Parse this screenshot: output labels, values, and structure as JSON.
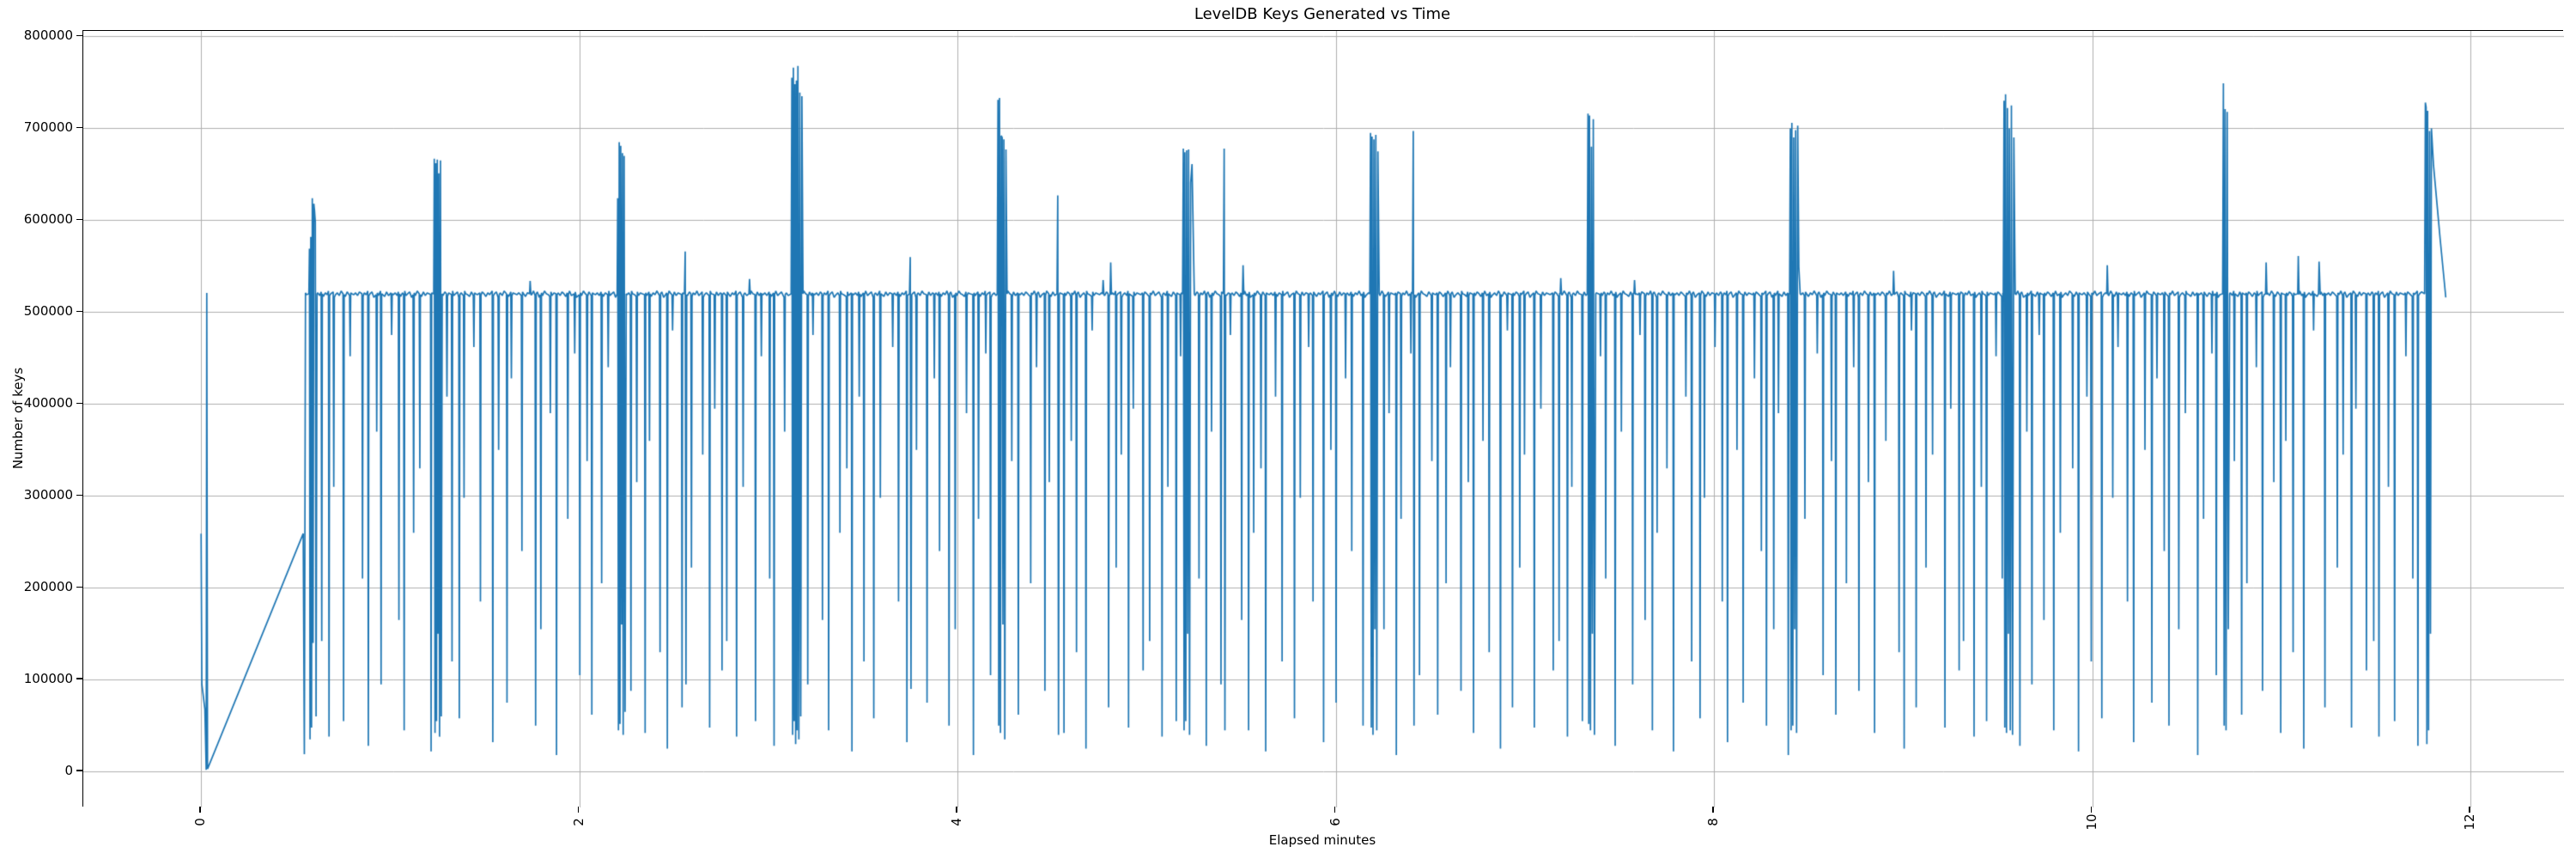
{
  "figure": {
    "title": "LevelDB Keys Generated vs Time"
  },
  "chart_data": {
    "type": "line",
    "title": "LevelDB Keys Generated vs Time",
    "xlabel": "Elapsed minutes",
    "ylabel": "Number of keys",
    "xlim": [
      -0.623,
      12.495
    ],
    "ylim": [
      -39000,
      806000
    ],
    "xticks": [
      0,
      2,
      4,
      6,
      8,
      10,
      12
    ],
    "yticks": [
      0,
      100000,
      200000,
      300000,
      400000,
      500000,
      600000,
      700000,
      800000
    ],
    "x_tick_labels": [
      "0",
      "2",
      "4",
      "6",
      "8",
      "10",
      "12"
    ],
    "y_tick_labels": [
      "0",
      "100000",
      "200000",
      "300000",
      "400000",
      "500000",
      "600000",
      "700000",
      "800000"
    ],
    "grid": true,
    "grid_color": "#b0b0b0",
    "line_color": "#1f77b4",
    "spine_color": "#000000",
    "y_value_scale": 1000,
    "plateau": {
      "start": 0.556,
      "end": 11.754,
      "level": 518,
      "sample_step": 0.01,
      "jitter_pattern": [
        1,
        3,
        0,
        4,
        2,
        -1,
        3,
        1,
        5,
        0,
        2,
        4,
        -2,
        1,
        3,
        0,
        5,
        2,
        1,
        -1,
        4,
        0,
        3,
        2
      ]
    },
    "down_spikes": {
      "base_interval": 0.0385,
      "width": 0.006,
      "interval_mult": [
        1,
        0.65,
        1.35,
        0.9,
        1.7,
        0.8,
        1.15,
        0.6,
        1.45,
        1.0,
        0.72,
        1.3,
        0.85,
        1.55,
        0.95,
        0.7
      ],
      "depths": [
        142,
        38,
        310,
        55,
        452,
        210,
        28,
        370,
        95,
        475,
        165,
        45,
        260,
        330,
        22,
        408,
        120,
        58,
        298,
        462,
        185,
        32,
        350,
        75,
        428,
        240,
        50,
        155,
        390,
        18,
        275,
        455,
        105,
        338,
        62,
        205,
        440,
        88,
        315,
        42,
        360,
        130,
        25,
        480,
        70,
        222,
        345,
        48,
        395,
        110
      ]
    },
    "transient": [
      [
        0.0,
        259
      ],
      [
        0.004,
        95
      ],
      [
        0.02,
        68
      ],
      [
        0.027,
        2
      ],
      [
        0.03,
        521
      ],
      [
        0.034,
        3
      ],
      [
        0.54,
        259
      ],
      [
        0.546,
        19
      ],
      [
        0.552,
        521
      ]
    ],
    "events": [
      {
        "name": "spike-cluster-0",
        "points": [
          [
            0.57,
            520
          ],
          [
            0.573,
            569
          ],
          [
            0.576,
            35
          ],
          [
            0.58,
            582
          ],
          [
            0.584,
            48
          ],
          [
            0.588,
            624
          ],
          [
            0.592,
            140
          ],
          [
            0.596,
            618
          ],
          [
            0.6,
            610
          ],
          [
            0.604,
            598
          ],
          [
            0.608,
            60
          ],
          [
            0.613,
            520
          ]
        ]
      },
      {
        "name": "spike-cluster-1",
        "points": [
          [
            1.23,
            520
          ],
          [
            1.233,
            667
          ],
          [
            1.237,
            42
          ],
          [
            1.241,
            662
          ],
          [
            1.245,
            55
          ],
          [
            1.249,
            666
          ],
          [
            1.253,
            150
          ],
          [
            1.257,
            651
          ],
          [
            1.261,
            38
          ],
          [
            1.266,
            665
          ],
          [
            1.27,
            60
          ],
          [
            1.275,
            520
          ]
        ]
      },
      {
        "name": "bump-1",
        "points": [
          [
            1.737,
            520
          ],
          [
            1.74,
            534
          ],
          [
            1.744,
            519
          ]
        ]
      },
      {
        "name": "spike-cluster-2",
        "points": [
          [
            2.2,
            520
          ],
          [
            2.203,
            624
          ],
          [
            2.207,
            45
          ],
          [
            2.211,
            685
          ],
          [
            2.215,
            52
          ],
          [
            2.219,
            681
          ],
          [
            2.224,
            160
          ],
          [
            2.228,
            673
          ],
          [
            2.232,
            40
          ],
          [
            2.237,
            670
          ],
          [
            2.242,
            65
          ],
          [
            2.248,
            520
          ]
        ]
      },
      {
        "name": "tall-spike-1",
        "points": [
          [
            2.556,
            520
          ],
          [
            2.56,
            566
          ],
          [
            2.564,
            95
          ],
          [
            2.568,
            519
          ]
        ]
      },
      {
        "name": "bump-2",
        "points": [
          [
            2.897,
            520
          ],
          [
            2.9,
            536
          ],
          [
            2.904,
            519
          ]
        ]
      },
      {
        "name": "spike-cluster-3",
        "points": [
          [
            3.12,
            520
          ],
          [
            3.124,
            755
          ],
          [
            3.128,
            40
          ],
          [
            3.132,
            766
          ],
          [
            3.136,
            55
          ],
          [
            3.14,
            748
          ],
          [
            3.144,
            30
          ],
          [
            3.148,
            752
          ],
          [
            3.152,
            45
          ],
          [
            3.156,
            768
          ],
          [
            3.161,
            35
          ],
          [
            3.166,
            739
          ],
          [
            3.171,
            60
          ],
          [
            3.177,
            735
          ],
          [
            3.183,
            520
          ]
        ]
      },
      {
        "name": "tall-spike-2",
        "points": [
          [
            3.746,
            520
          ],
          [
            3.75,
            560
          ],
          [
            3.754,
            90
          ],
          [
            3.758,
            519
          ]
        ]
      },
      {
        "name": "spike-cluster-4",
        "points": [
          [
            4.21,
            520
          ],
          [
            4.214,
            731
          ],
          [
            4.218,
            50
          ],
          [
            4.222,
            733
          ],
          [
            4.227,
            42
          ],
          [
            4.231,
            692
          ],
          [
            4.236,
            690
          ],
          [
            4.24,
            160
          ],
          [
            4.245,
            688
          ],
          [
            4.25,
            35
          ],
          [
            4.256,
            677
          ],
          [
            4.262,
            520
          ]
        ]
      },
      {
        "name": "tall-spike-3",
        "points": [
          [
            4.526,
            520
          ],
          [
            4.53,
            627
          ],
          [
            4.534,
            40
          ],
          [
            4.538,
            519
          ]
        ]
      },
      {
        "name": "bump-3",
        "points": [
          [
            4.767,
            520
          ],
          [
            4.77,
            535
          ],
          [
            4.774,
            519
          ]
        ]
      },
      {
        "name": "bump-4",
        "points": [
          [
            4.807,
            520
          ],
          [
            4.81,
            554
          ],
          [
            4.814,
            519
          ]
        ]
      },
      {
        "name": "spike-cluster-5",
        "points": [
          [
            5.19,
            520
          ],
          [
            5.194,
            678
          ],
          [
            5.198,
            45
          ],
          [
            5.202,
            674
          ],
          [
            5.207,
            55
          ],
          [
            5.212,
            676
          ],
          [
            5.217,
            150
          ],
          [
            5.222,
            677
          ],
          [
            5.227,
            40
          ],
          [
            5.233,
            641
          ],
          [
            5.24,
            661
          ],
          [
            5.252,
            520
          ]
        ]
      },
      {
        "name": "tall-spike-4",
        "points": [
          [
            5.406,
            520
          ],
          [
            5.41,
            678
          ],
          [
            5.414,
            45
          ],
          [
            5.418,
            519
          ]
        ]
      },
      {
        "name": "bump-5",
        "points": [
          [
            5.507,
            520
          ],
          [
            5.51,
            551
          ],
          [
            5.514,
            519
          ]
        ]
      },
      {
        "name": "spike-cluster-6",
        "points": [
          [
            6.18,
            520
          ],
          [
            6.184,
            695
          ],
          [
            6.188,
            48
          ],
          [
            6.192,
            691
          ],
          [
            6.197,
            40
          ],
          [
            6.202,
            688
          ],
          [
            6.207,
            155
          ],
          [
            6.212,
            693
          ],
          [
            6.217,
            45
          ],
          [
            6.223,
            675
          ],
          [
            6.23,
            520
          ]
        ]
      },
      {
        "name": "tall-spike-5",
        "points": [
          [
            6.406,
            520
          ],
          [
            6.41,
            697
          ],
          [
            6.414,
            50
          ],
          [
            6.418,
            519
          ]
        ]
      },
      {
        "name": "bump-6",
        "points": [
          [
            7.187,
            520
          ],
          [
            7.19,
            537
          ],
          [
            7.194,
            519
          ]
        ]
      },
      {
        "name": "spike-cluster-7",
        "points": [
          [
            7.33,
            520
          ],
          [
            7.334,
            716
          ],
          [
            7.338,
            52
          ],
          [
            7.342,
            714
          ],
          [
            7.347,
            45
          ],
          [
            7.352,
            680
          ],
          [
            7.357,
            150
          ],
          [
            7.362,
            710
          ],
          [
            7.368,
            40
          ],
          [
            7.375,
            520
          ]
        ]
      },
      {
        "name": "bump-7",
        "points": [
          [
            7.577,
            520
          ],
          [
            7.58,
            535
          ],
          [
            7.584,
            519
          ]
        ]
      },
      {
        "name": "spike-cluster-8",
        "points": [
          [
            8.4,
            520
          ],
          [
            8.404,
            700
          ],
          [
            8.408,
            45
          ],
          [
            8.412,
            706
          ],
          [
            8.417,
            50
          ],
          [
            8.422,
            690
          ],
          [
            8.427,
            155
          ],
          [
            8.432,
            698
          ],
          [
            8.437,
            42
          ],
          [
            8.443,
            703
          ],
          [
            8.449,
            549
          ],
          [
            8.456,
            520
          ]
        ]
      },
      {
        "name": "bump-8",
        "points": [
          [
            8.947,
            520
          ],
          [
            8.95,
            545
          ],
          [
            8.954,
            519
          ]
        ]
      },
      {
        "name": "spike-cluster-9",
        "points": [
          [
            9.53,
            520
          ],
          [
            9.534,
            730
          ],
          [
            9.538,
            48
          ],
          [
            9.542,
            737
          ],
          [
            9.547,
            42
          ],
          [
            9.552,
            722
          ],
          [
            9.557,
            150
          ],
          [
            9.562,
            700
          ],
          [
            9.567,
            45
          ],
          [
            9.573,
            725
          ],
          [
            9.579,
            40
          ],
          [
            9.586,
            690
          ],
          [
            9.593,
            520
          ]
        ]
      },
      {
        "name": "bump-9",
        "points": [
          [
            10.077,
            520
          ],
          [
            10.08,
            551
          ],
          [
            10.084,
            519
          ]
        ]
      },
      {
        "name": "spike-cluster-10",
        "points": [
          [
            10.69,
            520
          ],
          [
            10.694,
            749
          ],
          [
            10.698,
            50
          ],
          [
            10.703,
            721
          ],
          [
            10.708,
            45
          ],
          [
            10.714,
            718
          ],
          [
            10.72,
            155
          ],
          [
            10.727,
            520
          ]
        ]
      },
      {
        "name": "bump-10",
        "points": [
          [
            10.917,
            520
          ],
          [
            10.92,
            554
          ],
          [
            10.924,
            519
          ]
        ]
      },
      {
        "name": "bump-11",
        "points": [
          [
            11.087,
            520
          ],
          [
            11.09,
            561
          ],
          [
            11.094,
            519
          ]
        ]
      },
      {
        "name": "bump-12",
        "points": [
          [
            11.197,
            520
          ],
          [
            11.2,
            555
          ],
          [
            11.206,
            519
          ]
        ]
      },
      {
        "name": "spike-cluster-11",
        "points": [
          [
            11.758,
            520
          ],
          [
            11.762,
            728
          ],
          [
            11.766,
            723
          ],
          [
            11.77,
            30
          ],
          [
            11.774,
            719
          ],
          [
            11.779,
            45
          ],
          [
            11.784,
            697
          ],
          [
            11.789,
            150
          ],
          [
            11.794,
            700
          ],
          [
            11.805,
            660
          ],
          [
            11.84,
            580
          ],
          [
            11.87,
            516
          ]
        ]
      }
    ]
  }
}
